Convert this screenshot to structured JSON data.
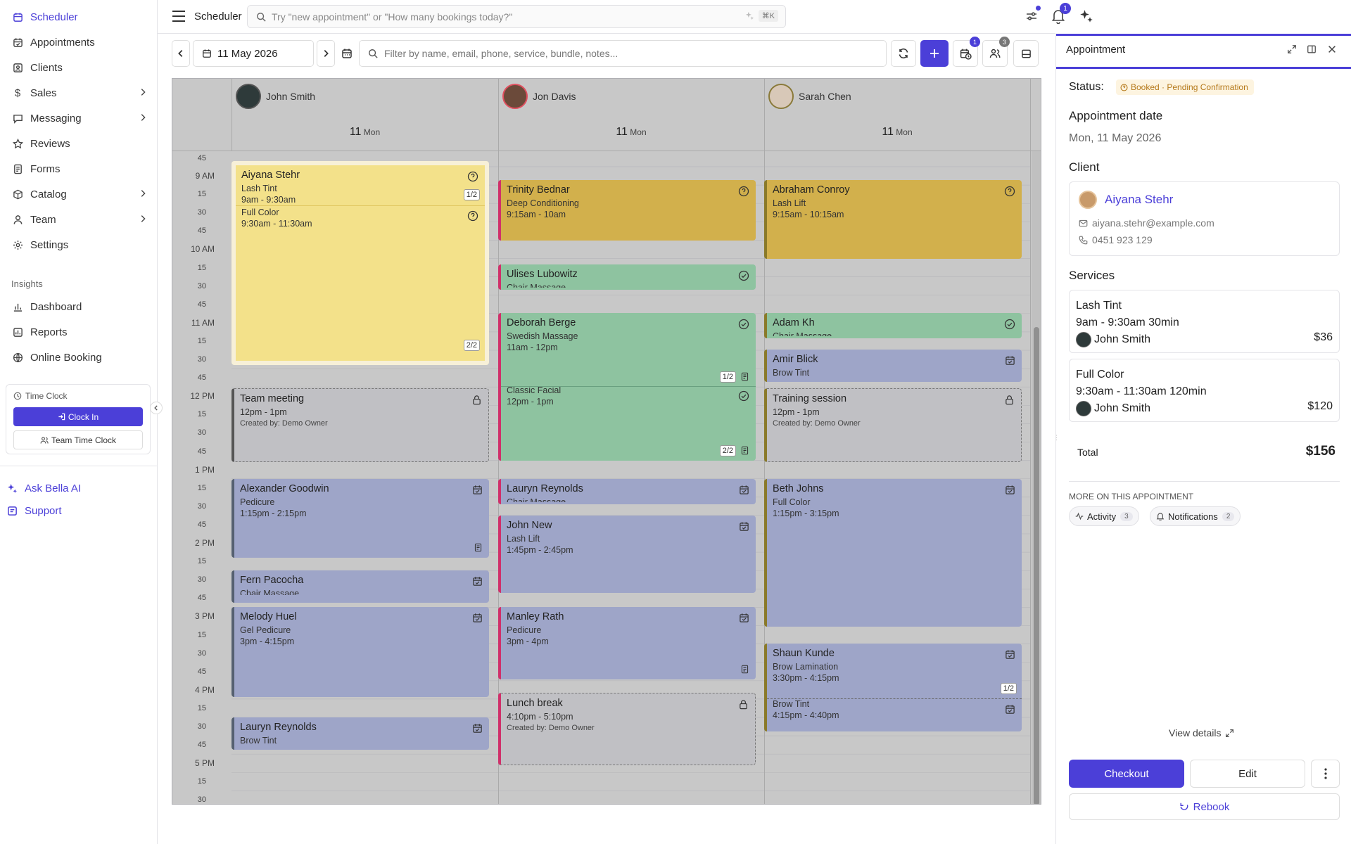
{
  "sidebar": {
    "items": [
      {
        "label": "Scheduler",
        "icon": "calendar-icon",
        "active": true
      },
      {
        "label": "Appointments",
        "icon": "calendar-check-icon"
      },
      {
        "label": "Clients",
        "icon": "clients-icon"
      },
      {
        "label": "Sales",
        "icon": "dollar-icon",
        "chevron": true
      },
      {
        "label": "Messaging",
        "icon": "message-icon",
        "chevron": true
      },
      {
        "label": "Reviews",
        "icon": "star-icon"
      },
      {
        "label": "Forms",
        "icon": "form-icon"
      },
      {
        "label": "Catalog",
        "icon": "box-icon",
        "chevron": true
      },
      {
        "label": "Team",
        "icon": "user-icon",
        "chevron": true
      },
      {
        "label": "Settings",
        "icon": "gear-icon"
      }
    ],
    "insights_label": "Insights",
    "insights": [
      {
        "label": "Dashboard",
        "icon": "bar-chart-icon"
      },
      {
        "label": "Reports",
        "icon": "report-icon"
      },
      {
        "label": "Online Booking",
        "icon": "globe-icon"
      }
    ],
    "time_clock": {
      "title": "Time Clock",
      "clock_in": "Clock In",
      "team": "Team Time Clock"
    },
    "ask_ai": "Ask Bella AI",
    "support": "Support"
  },
  "topbar": {
    "title": "Scheduler",
    "search_placeholder": "Try \"new appointment\" or \"How many bookings today?\"",
    "shortcut": "⌘K",
    "notif_count": "1"
  },
  "toolbar": {
    "date": "11 May 2026",
    "filter_placeholder": "Filter by name, email, phone, service, bundle, notes...",
    "waitlist_count": "1",
    "staff_count": "3"
  },
  "staff": [
    {
      "name": "John Smith",
      "day": "11",
      "dow": "Mon"
    },
    {
      "name": "Jon Davis",
      "day": "11",
      "dow": "Mon"
    },
    {
      "name": "Sarah Chen",
      "day": "11",
      "dow": "Mon"
    }
  ],
  "time_labels": {
    "hours": [
      "9 AM",
      "10 AM",
      "11 AM",
      "12 PM",
      "1 PM",
      "2 PM",
      "3 PM",
      "4 PM",
      "5 PM"
    ],
    "quarters": [
      "15",
      "30",
      "45"
    ],
    "top": "45"
  },
  "events": [
    {
      "name": "Aiyana Stehr",
      "service": "Lash Tint",
      "time": "9am - 9:30am",
      "badge": "1/2",
      "icon": "question-icon"
    },
    {
      "name": "",
      "service": "Full Color",
      "time": "9:30am - 11:30am",
      "badge": "2/2",
      "icon": "question-icon"
    },
    {
      "name": "Team meeting",
      "service": "12pm - 1pm",
      "time": "Created by: Demo Owner",
      "icon": "lock-icon"
    },
    {
      "name": "Alexander Goodwin",
      "service": "Pedicure",
      "time": "1:15pm - 2:15pm",
      "icon": "calendar-icon"
    },
    {
      "name": "Fern Pacocha",
      "service": "Chair Massage",
      "time": "",
      "icon": "calendar-icon"
    },
    {
      "name": "Melody Huel",
      "service": "Gel Pedicure",
      "time": "3pm - 4:15pm",
      "icon": "calendar-icon"
    },
    {
      "name": "Lauryn Reynolds",
      "service": "Brow Tint",
      "time": "",
      "icon": "calendar-icon"
    },
    {
      "name": "Trinity Bednar",
      "service": "Deep Conditioning",
      "time": "9:15am - 10am",
      "icon": "question-icon"
    },
    {
      "name": "Ulises Lubowitz",
      "service": "Chair Massage",
      "time": "",
      "icon": "check-circle-icon"
    },
    {
      "name": "Deborah Berge",
      "service": "Swedish Massage",
      "time": "11am - 12pm",
      "badge": "1/2",
      "icon": "check-circle-icon"
    },
    {
      "name": "",
      "service": "Classic Facial",
      "time": "12pm - 1pm",
      "badge": "2/2",
      "icon": "check-circle-icon"
    },
    {
      "name": "Lauryn Reynolds",
      "service": "Chair Massage",
      "time": "",
      "icon": "calendar-icon"
    },
    {
      "name": "John New",
      "service": "Lash Lift",
      "time": "1:45pm - 2:45pm",
      "icon": "calendar-icon"
    },
    {
      "name": "Manley Rath",
      "service": "Pedicure",
      "time": "3pm - 4pm",
      "icon": "calendar-icon"
    },
    {
      "name": "Lunch break",
      "service": "4:10pm - 5:10pm",
      "time": "Created by: Demo Owner",
      "icon": "lock-icon"
    },
    {
      "name": "Abraham Conroy",
      "service": "Lash Lift",
      "time": "9:15am - 10:15am",
      "icon": "question-icon"
    },
    {
      "name": "Adam Kh",
      "service": "Chair Massage",
      "time": "",
      "icon": "check-circle-icon"
    },
    {
      "name": "Amir Blick",
      "service": "Brow Tint",
      "time": "",
      "icon": "calendar-icon"
    },
    {
      "name": "Training session",
      "service": "12pm - 1pm",
      "time": "Created by: Demo Owner",
      "icon": "lock-icon"
    },
    {
      "name": "Beth Johns",
      "service": "Full Color",
      "time": "1:15pm - 3:15pm",
      "icon": "calendar-icon"
    },
    {
      "name": "Shaun Kunde",
      "service": "Brow Lamination",
      "time": "3:30pm - 4:15pm",
      "badge": "1/2",
      "icon": "calendar-icon"
    },
    {
      "name": "",
      "service": "Brow Tint",
      "time": "4:15pm - 4:40pm",
      "icon": "calendar-icon"
    }
  ],
  "panel": {
    "title": "Appointment",
    "status_label": "Status:",
    "status": "Booked · Pending Confirmation",
    "date_heading": "Appointment date",
    "date": "Mon, 11 May 2026",
    "client_heading": "Client",
    "client_name": "Aiyana Stehr",
    "client_email": "aiyana.stehr@example.com",
    "client_phone": "0451 923 129",
    "services_heading": "Services",
    "services": [
      {
        "name": "Lash Tint",
        "time": "9am - 9:30am 30min",
        "staff": "John Smith",
        "price": "$36"
      },
      {
        "name": "Full Color",
        "time": "9:30am - 11:30am 120min",
        "staff": "John Smith",
        "price": "$120"
      }
    ],
    "total_label": "Total",
    "total": "$156",
    "more_heading": "MORE ON THIS APPOINTMENT",
    "activity": "Activity",
    "activity_count": "3",
    "notifications": "Notifications",
    "notifications_count": "2",
    "view_details": "View details",
    "checkout": "Checkout",
    "edit": "Edit",
    "rebook": "Rebook"
  },
  "colors": {
    "accent": "#4b3fd8",
    "yellow": "#e9c46a",
    "olive": "#d2b04c",
    "green": "#8bc9a0",
    "blue": "#98a1c9",
    "status": "#b5791b"
  }
}
